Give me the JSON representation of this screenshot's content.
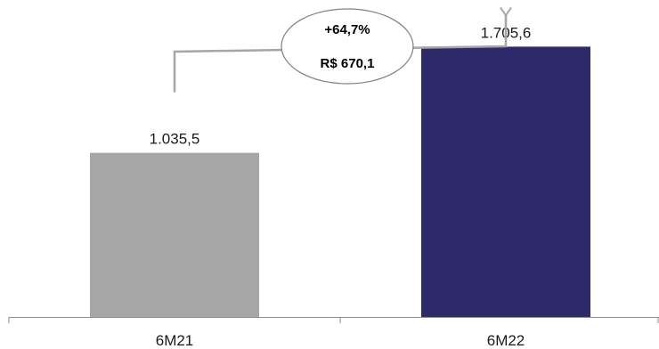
{
  "chart_data": {
    "type": "bar",
    "categories": [
      "6M21",
      "6M22"
    ],
    "values": [
      1035.5,
      1705.6
    ],
    "value_labels": [
      "1.035,5",
      "1.705,6"
    ],
    "colors": [
      "#a6a6a6",
      "#2e2a6a"
    ],
    "title": "",
    "xlabel": "",
    "ylabel": "",
    "ylim": [
      0,
      2000
    ],
    "grid": false,
    "legend": "none",
    "annotation": {
      "percent_change": "+64,7%",
      "absolute_change": "R$ 670,1",
      "arrow_color": "#a6a6a6"
    }
  }
}
